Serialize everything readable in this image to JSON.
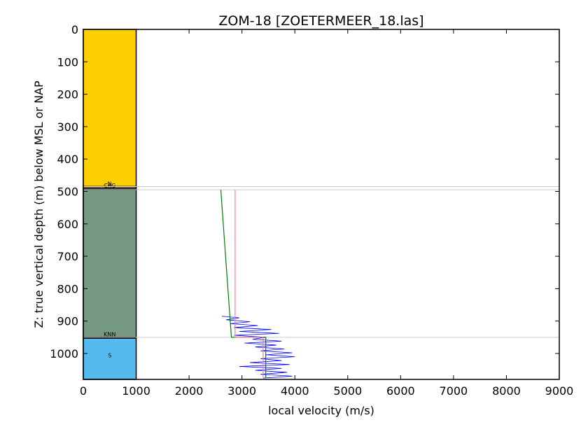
{
  "chart_data": {
    "type": "line",
    "title": "ZOM-18 [ZOETERMEER_18.las]",
    "xlabel": "local velocity (m/s)",
    "ylabel": "Z: true vertical depth (m) below MSL or NAP",
    "xlim": [
      0,
      9000
    ],
    "ylim": [
      1080,
      0
    ],
    "y_inverted": true,
    "x_ticks": [
      0,
      1000,
      2000,
      3000,
      4000,
      5000,
      6000,
      7000,
      8000,
      9000
    ],
    "y_ticks": [
      0,
      100,
      200,
      300,
      400,
      500,
      600,
      700,
      800,
      900,
      1000
    ],
    "grid": false,
    "units": [
      {
        "label": "",
        "top": 0,
        "bottom": 485,
        "color": "#fcd000"
      },
      {
        "label": "N",
        "top": 485,
        "bottom": 490,
        "color": "#f0d060"
      },
      {
        "label": "CKG",
        "top": 490,
        "bottom": 495,
        "color": "#7a9a7a"
      },
      {
        "label": "",
        "top": 495,
        "bottom": 950,
        "color": "#779a82"
      },
      {
        "label": "KNN",
        "top": 950,
        "bottom": 953,
        "color": "#779a82"
      },
      {
        "label": "S",
        "top": 953,
        "bottom": 1080,
        "color": "#55bbee"
      }
    ],
    "horizon_depths": [
      485,
      495,
      950,
      1080
    ],
    "series": [
      {
        "color": "#0000ff",
        "points": [
          [
            2620,
            885
          ],
          [
            2950,
            890
          ],
          [
            2700,
            896
          ],
          [
            3150,
            902
          ],
          [
            2780,
            908
          ],
          [
            3300,
            914
          ],
          [
            2850,
            920
          ],
          [
            3550,
            926
          ],
          [
            2950,
            932
          ],
          [
            3700,
            938
          ],
          [
            2850,
            944
          ],
          [
            3450,
            950
          ],
          [
            3200,
            956
          ],
          [
            3750,
            962
          ],
          [
            3050,
            968
          ],
          [
            3650,
            974
          ],
          [
            3250,
            980
          ],
          [
            3800,
            986
          ],
          [
            3350,
            992
          ],
          [
            3950,
            998
          ],
          [
            3450,
            1004
          ],
          [
            4000,
            1010
          ],
          [
            3350,
            1016
          ],
          [
            3750,
            1022
          ],
          [
            3150,
            1028
          ],
          [
            3900,
            1034
          ],
          [
            2950,
            1040
          ],
          [
            3750,
            1046
          ],
          [
            3250,
            1052
          ],
          [
            3850,
            1058
          ],
          [
            3350,
            1064
          ],
          [
            3950,
            1070
          ],
          [
            3400,
            1076
          ]
        ]
      },
      {
        "color": "#008000",
        "points": [
          [
            2600,
            495
          ],
          [
            2800,
            950
          ],
          [
            3450,
            950
          ],
          [
            3450,
            1075
          ]
        ]
      },
      {
        "color": "#ff8080",
        "points": [
          [
            2870,
            495
          ],
          [
            2870,
            950
          ],
          [
            3400,
            950
          ],
          [
            3400,
            1075
          ]
        ]
      }
    ]
  }
}
